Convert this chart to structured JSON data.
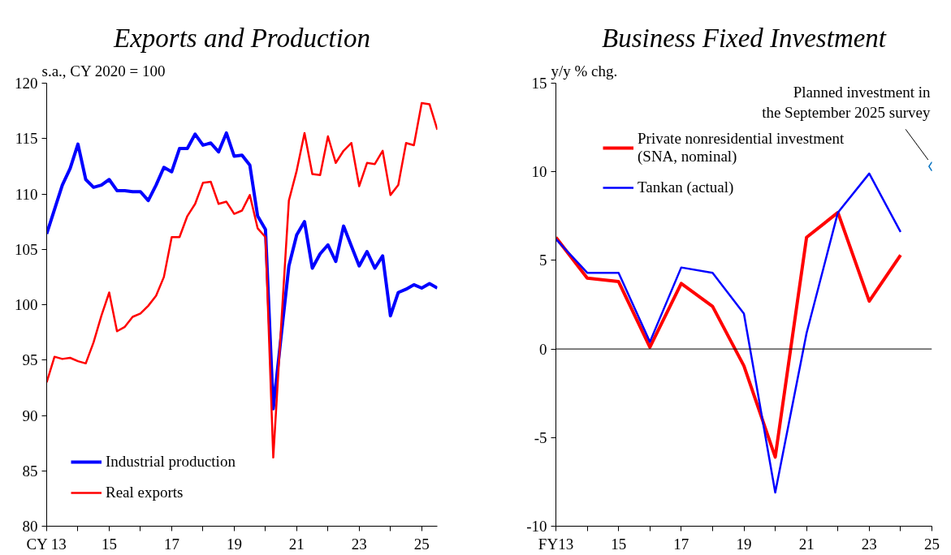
{
  "chart_data": [
    {
      "type": "line",
      "title": "Exports and Production",
      "ylabel": "s.a., CY 2020 = 100",
      "x": [
        13,
        13.25,
        13.5,
        13.75,
        14,
        14.25,
        14.5,
        14.75,
        15,
        15.25,
        15.5,
        15.75,
        16,
        16.25,
        16.5,
        16.75,
        17,
        17.25,
        17.5,
        17.75,
        18,
        18.25,
        18.5,
        18.75,
        19,
        19.25,
        19.5,
        19.75,
        20,
        20.25,
        20.5,
        20.75,
        21,
        21.25,
        21.5,
        21.75,
        22,
        22.25,
        22.5,
        22.75,
        23,
        23.25,
        23.5,
        23.75,
        24,
        24.25,
        24.5,
        24.75,
        25,
        25.25,
        25.5
      ],
      "xlim": [
        13,
        25.5
      ],
      "xticks": [
        {
          "value": 13,
          "label": "CY 13"
        },
        {
          "value": 14,
          "label": null
        },
        15,
        {
          "value": 16,
          "label": null
        },
        17,
        {
          "value": 18,
          "label": null
        },
        19,
        {
          "value": 20,
          "label": null
        },
        21,
        {
          "value": 22,
          "label": null
        },
        23,
        {
          "value": 24,
          "label": null
        },
        25
      ],
      "ylim": [
        80,
        120
      ],
      "yticks": [
        80,
        85,
        90,
        95,
        100,
        105,
        110,
        115,
        120
      ],
      "grid": false,
      "legend": "bottom left",
      "series": [
        {
          "name": "Industrial production",
          "color": "#0000ff",
          "values": [
            106.4,
            108.6,
            110.8,
            112.3,
            114.5,
            111.3,
            110.6,
            110.8,
            111.3,
            110.3,
            110.3,
            110.2,
            110.2,
            109.4,
            110.8,
            112.4,
            112.0,
            114.1,
            114.1,
            115.4,
            114.4,
            114.6,
            113.8,
            115.5,
            113.4,
            113.5,
            112.6,
            108.0,
            106.8,
            90.6,
            97.1,
            103.5,
            106.3,
            107.5,
            103.3,
            104.6,
            105.4,
            103.9,
            107.1,
            105.3,
            103.5,
            104.8,
            103.3,
            104.4,
            99.0,
            101.1,
            101.4,
            101.8,
            101.5,
            101.9,
            101.5
          ]
        },
        {
          "name": "Real exports",
          "color": "#ff0000",
          "values": [
            93.0,
            95.3,
            95.1,
            95.2,
            94.9,
            94.7,
            96.6,
            99.0,
            101.1,
            97.6,
            98.0,
            98.9,
            99.2,
            99.9,
            100.8,
            102.5,
            106.1,
            106.1,
            108.0,
            109.1,
            111.0,
            111.1,
            109.1,
            109.3,
            108.2,
            108.5,
            109.9,
            106.9,
            106.1,
            86.2,
            98.0,
            109.4,
            112.1,
            115.5,
            111.8,
            111.7,
            115.2,
            112.8,
            113.9,
            114.6,
            110.7,
            112.8,
            112.7,
            113.9,
            109.9,
            110.8,
            114.6,
            114.4,
            118.2,
            118.1,
            115.8
          ]
        }
      ]
    },
    {
      "type": "line",
      "title": "Business Fixed Investment",
      "ylabel": "y/y % chg.",
      "xlim": [
        13,
        25
      ],
      "xticks": [
        {
          "value": 13,
          "label": "FY13"
        },
        {
          "value": 14,
          "label": null
        },
        15,
        {
          "value": 16,
          "label": null
        },
        17,
        {
          "value": 18,
          "label": null
        },
        19,
        {
          "value": 20,
          "label": null
        },
        21,
        {
          "value": 22,
          "label": null
        },
        23,
        {
          "value": 24,
          "label": null
        },
        25
      ],
      "ylim": [
        -10,
        15
      ],
      "yticks": [
        -10,
        -5,
        0,
        5,
        10,
        15
      ],
      "grid": false,
      "legend": "top left",
      "ref_lines": [
        {
          "axis": "y",
          "value": 0,
          "color": "#000000"
        }
      ],
      "annotations": [
        {
          "text": "Planned investment in\nthe September 2025 survey",
          "x": 25,
          "y": 10.3
        }
      ],
      "series": [
        {
          "name": "Private nonresidential investment\n(SNA, nominal)",
          "color": "#ff0000",
          "x": [
            13,
            14,
            15,
            16,
            17,
            18,
            19,
            20,
            21,
            22,
            23,
            24
          ],
          "values": [
            6.3,
            4.0,
            3.8,
            0.1,
            3.7,
            2.4,
            -0.95,
            -6.1,
            6.3,
            7.7,
            2.7,
            5.3
          ]
        },
        {
          "name": "Tankan (actual)",
          "color": "#0000ff",
          "x": [
            13,
            14,
            15,
            16,
            17,
            18,
            19,
            20,
            21,
            22,
            23,
            24
          ],
          "values": [
            6.2,
            4.3,
            4.3,
            0.4,
            4.6,
            4.3,
            2.0,
            -8.1,
            0.9,
            7.7,
            9.9,
            6.6
          ]
        },
        {
          "type": "scatter",
          "marker": "diamond",
          "color": "#0070c0",
          "x": [
            25
          ],
          "values": [
            10.3
          ]
        }
      ]
    }
  ]
}
